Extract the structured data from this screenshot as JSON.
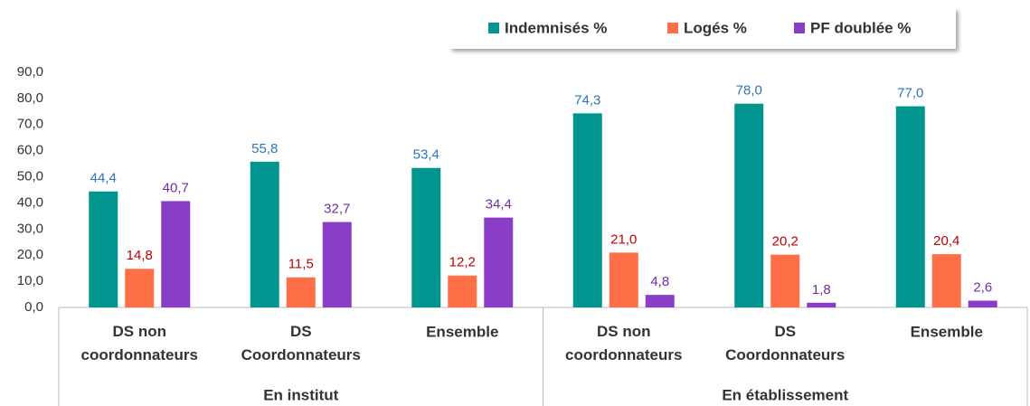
{
  "chart_data": {
    "type": "bar",
    "categories": [
      "DS non coordonnateurs",
      "DS Coordonnateurs",
      "Ensemble",
      "DS non coordonnateurs",
      "DS Coordonnateurs",
      "Ensemble"
    ],
    "groups": [
      {
        "name": "En institut",
        "count": 3
      },
      {
        "name": "En établissement",
        "count": 3
      }
    ],
    "series": [
      {
        "name": "Indemnisés %",
        "color": "#00968f",
        "label_color": "#2e75b6",
        "values": [
          44.4,
          55.8,
          53.4,
          74.3,
          78.0,
          77.0
        ],
        "value_labels": [
          "44,4",
          "55,8",
          "53,4",
          "74,3",
          "78,0",
          "77,0"
        ]
      },
      {
        "name": "Logés %",
        "color": "#ff6f47",
        "label_color": "#c00000",
        "values": [
          14.8,
          11.5,
          12.2,
          21.0,
          20.2,
          20.4
        ],
        "value_labels": [
          "14,8",
          "11,5",
          "12,2",
          "21,0",
          "20,2",
          "20,4"
        ]
      },
      {
        "name": "PF doublée %",
        "color": "#8a3ec8",
        "label_color": "#7030a0",
        "values": [
          40.7,
          32.7,
          34.4,
          4.8,
          1.8,
          2.6
        ],
        "value_labels": [
          "40,7",
          "32,7",
          "34,4",
          "4,8",
          "1,8",
          "2,6"
        ]
      }
    ],
    "ylim": [
      0,
      90
    ],
    "yticks": [
      {
        "value": 0,
        "label": "0,0"
      },
      {
        "value": 10,
        "label": "10,0"
      },
      {
        "value": 20,
        "label": "20,0"
      },
      {
        "value": 30,
        "label": "30,0"
      },
      {
        "value": 40,
        "label": "40,0"
      },
      {
        "value": 50,
        "label": "50,0"
      },
      {
        "value": 60,
        "label": "60,0"
      },
      {
        "value": 70,
        "label": "70,0"
      },
      {
        "value": 80,
        "label": "80,0"
      },
      {
        "value": 90,
        "label": "90,0"
      }
    ],
    "grid": false,
    "legend": "top"
  }
}
